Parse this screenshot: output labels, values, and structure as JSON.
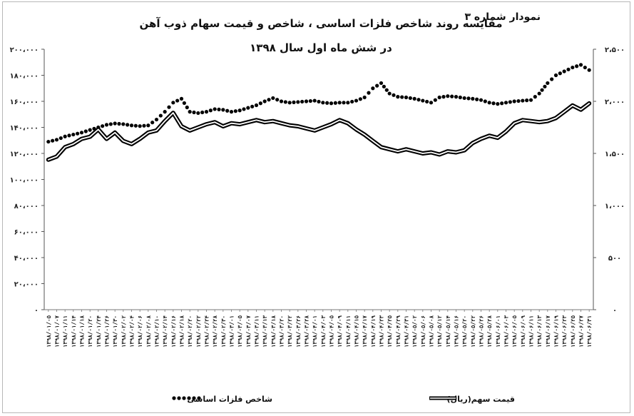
{
  "chart_label": "نمودار شماره ۳",
  "title_line1": "مقایسه روند شاخص فلزات اساسی ، شاخص و قیمت سهام ذوب آهن",
  "title_line2": "در شش ماه اول سال ۱۳۹۸",
  "chart_data": {
    "type": "line",
    "left_axis": {
      "ylim": [
        0,
        200000
      ],
      "ticks": [
        "۰",
        "۲۰،۰۰۰",
        "۴۰،۰۰۰",
        "۶۰،۰۰۰",
        "۸۰،۰۰۰",
        "۱۰۰،۰۰۰",
        "۱۲۰،۰۰۰",
        "۱۴۰،۰۰۰",
        "۱۶۰،۰۰۰",
        "۱۸۰،۰۰۰",
        "۲۰۰،۰۰۰"
      ]
    },
    "right_axis": {
      "ylim": [
        0,
        2500
      ],
      "ticks": [
        "۰",
        "۵۰۰",
        "۱،۰۰۰",
        "۱،۵۰۰",
        "۲،۰۰۰",
        "۲،۵۰۰"
      ]
    },
    "x_labels": [
      "۱۳۹۸/۰۱/۰۵",
      "۱۳۹۸/۰۱/۰۷",
      "۱۳۹۸/۰۱/۱۱",
      "۱۳۹۸/۰۱/۱۴",
      "۱۳۹۸/۰۱/۱۸",
      "۱۳۹۸/۰۱/۲۰",
      "۱۳۹۸/۰۱/۲۴",
      "۱۳۹۸/۰۱/۲۶",
      "۱۳۹۸/۰۱/۳۰",
      "۱۳۹۸/۰۲/۰۲",
      "۱۳۹۸/۰۲/۰۴",
      "۱۳۹۸/۰۲/۰۶",
      "۱۳۹۸/۰۲/۰۸",
      "۱۳۹۸/۰۲/۱۰",
      "۱۳۹۸/۰۲/۱۴",
      "۱۳۹۸/۰۲/۱۶",
      "۱۳۹۸/۰۲/۱۸",
      "۱۳۹۸/۰۲/۲۰",
      "۱۳۹۸/۰۲/۲۲",
      "۱۳۹۸/۰۲/۲۴",
      "۱۳۹۸/۰۲/۲۸",
      "۱۳۹۸/۰۲/۳۰",
      "۱۳۹۸/۰۳/۰۱",
      "۱۳۹۸/۰۳/۰۵",
      "۱۳۹۸/۰۳/۰۷",
      "۱۳۹۸/۰۳/۱۱",
      "۱۳۹۸/۰۳/۱۳",
      "۱۳۹۸/۰۳/۱۸",
      "۱۳۹۸/۰۳/۲۰",
      "۱۳۹۸/۰۳/۲۲",
      "۱۳۹۸/۰۳/۲۶",
      "۱۳۹۸/۰۳/۲۸",
      "۱۳۹۸/۰۴/۰۱",
      "۱۳۹۸/۰۴/۰۳",
      "۱۳۹۸/۰۴/۰۵",
      "۱۳۹۸/۰۴/۰۹",
      "۱۳۹۸/۰۴/۱۱",
      "۱۳۹۸/۰۴/۱۵",
      "۱۳۹۸/۰۴/۱۷",
      "۱۳۹۸/۰۴/۱۹",
      "۱۳۹۸/۰۴/۲۳",
      "۱۳۹۸/۰۴/۲۵",
      "۱۳۹۸/۰۴/۲۹",
      "۱۳۹۸/۰۴/۳۱",
      "۱۳۹۸/۰۵/۰۲",
      "۱۳۹۸/۰۵/۰۶",
      "۱۳۹۸/۰۵/۰۸",
      "۱۳۹۸/۰۵/۱۲",
      "۱۳۹۸/۰۵/۱۴",
      "۱۳۹۸/۰۵/۱۶",
      "۱۳۹۸/۰۵/۲۰",
      "۱۳۹۸/۰۵/۲۲",
      "۱۳۹۸/۰۵/۲۶",
      "۱۳۹۸/۰۵/۲۸",
      "۱۳۹۸/۰۶/۰۱",
      "۱۳۹۸/۰۶/۰۳",
      "۱۳۹۸/۰۶/۰۵",
      "۱۳۹۸/۰۶/۰۹",
      "۱۳۹۸/۰۶/۱۱",
      "۱۳۹۸/۰۶/۱۳",
      "۱۳۹۸/۰۶/۱۷",
      "۱۳۹۸/۰۶/۱۹",
      "۱۳۹۸/۰۶/۲۳",
      "۱۳۹۸/۰۶/۲۵",
      "۱۳۹۸/۰۶/۲۷",
      "۱۳۹۸/۰۶/۳۱"
    ],
    "series": [
      {
        "name": "شاخص فلزات اساسی",
        "axis": "left",
        "style": "dotted",
        "values": [
          129000,
          130500,
          133000,
          134500,
          136000,
          138000,
          140000,
          142000,
          143000,
          142500,
          141500,
          141000,
          141500,
          146000,
          152000,
          159000,
          162000,
          152000,
          151000,
          152000,
          154000,
          153500,
          152000,
          153000,
          155000,
          157000,
          160000,
          162500,
          160000,
          159000,
          159500,
          160000,
          160500,
          159000,
          158500,
          159000,
          159000,
          160500,
          163000,
          170000,
          174000,
          166000,
          163500,
          163000,
          162000,
          160500,
          159000,
          163000,
          164000,
          163500,
          162500,
          162000,
          161000,
          159000,
          158000,
          159000,
          160000,
          160500,
          161000,
          166000,
          174000,
          180000,
          183000,
          186000,
          188000,
          184000
        ]
      },
      {
        "name": "قیمت سهم(ریال)",
        "axis": "right",
        "style": "double",
        "values": [
          1440,
          1470,
          1560,
          1590,
          1640,
          1660,
          1730,
          1640,
          1700,
          1620,
          1590,
          1640,
          1700,
          1720,
          1810,
          1890,
          1760,
          1720,
          1750,
          1780,
          1800,
          1760,
          1790,
          1780,
          1800,
          1820,
          1800,
          1810,
          1790,
          1770,
          1760,
          1740,
          1720,
          1750,
          1780,
          1820,
          1790,
          1730,
          1680,
          1620,
          1560,
          1540,
          1520,
          1540,
          1520,
          1500,
          1510,
          1490,
          1520,
          1510,
          1530,
          1600,
          1640,
          1670,
          1650,
          1710,
          1790,
          1820,
          1810,
          1800,
          1810,
          1840,
          1900,
          1960,
          1920,
          1980
        ]
      }
    ],
    "legend_position": "bottom"
  }
}
